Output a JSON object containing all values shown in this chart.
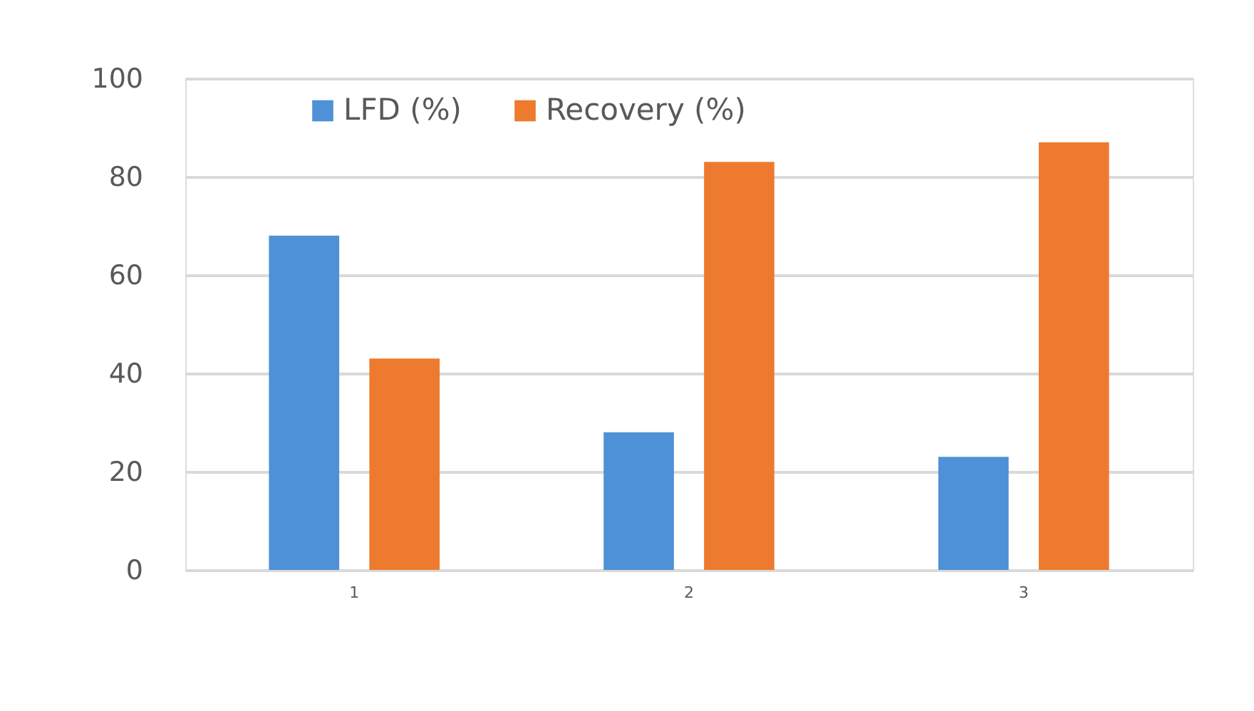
{
  "chart_data": {
    "type": "bar",
    "categories": [
      "1",
      "2",
      "3"
    ],
    "series": [
      {
        "name": "LFD (%)",
        "color": "#4e91d6",
        "values": [
          68,
          28,
          23
        ]
      },
      {
        "name": "Recovery (%)",
        "color": "#ee7a2f",
        "values": [
          43,
          83,
          87
        ]
      }
    ],
    "ylim": [
      0,
      100
    ],
    "yticks": [
      0,
      20,
      40,
      60,
      80,
      100
    ],
    "grid": "y",
    "legend": "top"
  }
}
